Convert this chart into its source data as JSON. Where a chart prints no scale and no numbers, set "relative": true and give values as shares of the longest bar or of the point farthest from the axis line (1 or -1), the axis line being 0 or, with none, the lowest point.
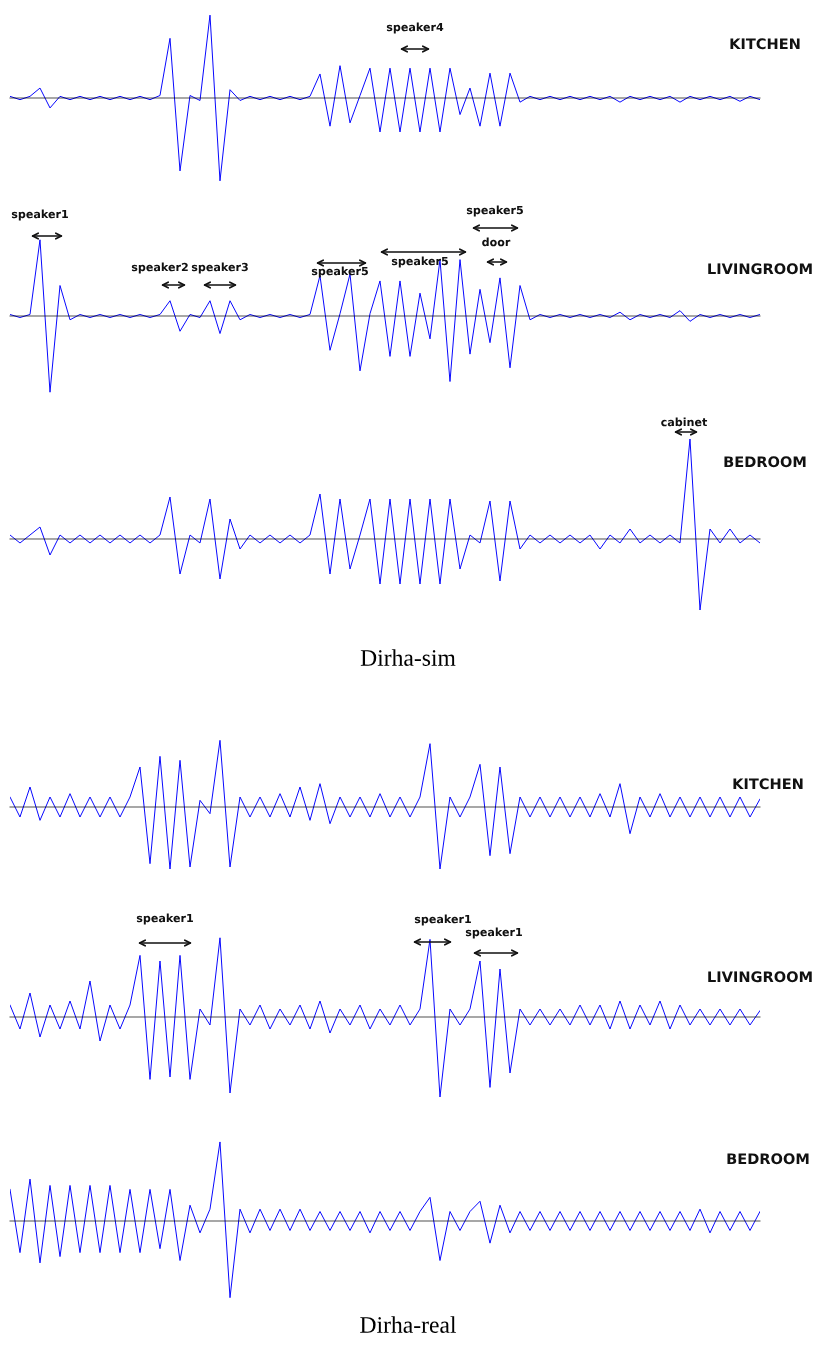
{
  "chart_data": [
    {
      "type": "line",
      "title": "KITCHEN",
      "relative": true,
      "color": "#0000ff",
      "annotations": [
        "speaker4"
      ],
      "categories": [
        null,
        null,
        null,
        null,
        null,
        null,
        null,
        null,
        null,
        null,
        null,
        null,
        null,
        null,
        null,
        null,
        null,
        null,
        null,
        null,
        null,
        null,
        null,
        null,
        null,
        null,
        null,
        null,
        null,
        null,
        null,
        null,
        null,
        null,
        null,
        null,
        null,
        null,
        null,
        null,
        null,
        null,
        null,
        null,
        null,
        null,
        null,
        null,
        null,
        null,
        null,
        null,
        null,
        null,
        null,
        null,
        null,
        null,
        null,
        null,
        null,
        null,
        null,
        null,
        null,
        null,
        null,
        null,
        null,
        null,
        null,
        null,
        null,
        null,
        null,
        null
      ],
      "values": [
        0.02,
        -0.02,
        0.02,
        0.12,
        -0.12,
        0.02,
        -0.02,
        0.02,
        -0.02,
        0.02,
        -0.02,
        0.02,
        -0.02,
        0.02,
        -0.02,
        0.03,
        0.72,
        -0.88,
        0.03,
        -0.03,
        1.0,
        -1.0,
        0.1,
        -0.03,
        0.02,
        -0.02,
        0.02,
        -0.02,
        0.02,
        -0.02,
        0.02,
        0.29,
        -0.34,
        0.39,
        -0.3,
        0.03,
        0.36,
        -0.41,
        0.36,
        -0.41,
        0.36,
        -0.41,
        0.36,
        -0.41,
        0.36,
        -0.2,
        0.12,
        -0.34,
        0.3,
        -0.34,
        0.3,
        -0.05,
        0.02,
        -0.02,
        0.02,
        -0.02,
        0.02,
        -0.02,
        0.02,
        -0.02,
        0.02,
        -0.05,
        0.02,
        -0.02,
        0.02,
        -0.02,
        0.02,
        -0.05,
        0.02,
        -0.02,
        0.02,
        -0.02,
        0.02,
        -0.04,
        0.02,
        -0.02
      ]
    },
    {
      "type": "line",
      "title": "LIVINGROOM",
      "relative": true,
      "color": "#0000ff",
      "annotations": [
        "speaker1",
        "speaker2",
        "speaker3",
        "speaker5",
        "speaker5",
        "speaker5",
        "door"
      ],
      "categories": [
        null,
        null,
        null,
        null,
        null,
        null,
        null,
        null,
        null,
        null,
        null,
        null,
        null,
        null,
        null,
        null,
        null,
        null,
        null,
        null,
        null,
        null,
        null,
        null,
        null,
        null,
        null,
        null,
        null,
        null,
        null,
        null,
        null,
        null,
        null,
        null,
        null,
        null,
        null,
        null,
        null,
        null,
        null,
        null,
        null,
        null,
        null,
        null,
        null,
        null,
        null,
        null,
        null,
        null,
        null,
        null,
        null,
        null,
        null,
        null,
        null,
        null,
        null,
        null,
        null,
        null,
        null,
        null,
        null,
        null,
        null,
        null,
        null,
        null,
        null,
        null
      ],
      "values": [
        0.02,
        -0.02,
        0.02,
        1.0,
        -1.0,
        0.4,
        -0.05,
        0.02,
        -0.02,
        0.02,
        -0.02,
        0.02,
        -0.02,
        0.02,
        -0.02,
        0.02,
        0.2,
        -0.2,
        0.02,
        -0.02,
        0.2,
        -0.23,
        0.2,
        -0.05,
        0.02,
        -0.02,
        0.02,
        -0.02,
        0.02,
        -0.02,
        0.02,
        0.53,
        -0.45,
        0.03,
        0.55,
        -0.72,
        0.03,
        0.46,
        -0.53,
        0.46,
        -0.53,
        0.3,
        -0.3,
        0.74,
        -0.86,
        0.74,
        -0.5,
        0.35,
        -0.35,
        0.5,
        -0.68,
        0.4,
        -0.05,
        0.02,
        -0.02,
        0.02,
        -0.02,
        0.02,
        -0.02,
        0.02,
        -0.02,
        0.05,
        -0.05,
        0.02,
        -0.02,
        0.02,
        -0.02,
        0.07,
        -0.07,
        0.02,
        -0.02,
        0.02,
        -0.02,
        0.02,
        -0.02,
        0.02
      ]
    },
    {
      "type": "line",
      "title": "BEDROOM",
      "relative": true,
      "color": "#0000ff",
      "annotations": [
        "cabinet",
        "Dirha-sim"
      ],
      "categories": [
        null,
        null,
        null,
        null,
        null,
        null,
        null,
        null,
        null,
        null,
        null,
        null,
        null,
        null,
        null,
        null,
        null,
        null,
        null,
        null,
        null,
        null,
        null,
        null,
        null,
        null,
        null,
        null,
        null,
        null,
        null,
        null,
        null,
        null,
        null,
        null,
        null,
        null,
        null,
        null,
        null,
        null,
        null,
        null,
        null,
        null,
        null,
        null,
        null,
        null,
        null,
        null,
        null,
        null,
        null,
        null,
        null,
        null,
        null,
        null,
        null,
        null,
        null,
        null,
        null,
        null,
        null,
        null,
        null,
        null,
        null,
        null,
        null,
        null,
        null,
        null
      ],
      "values": [
        0.04,
        -0.04,
        0.04,
        0.12,
        -0.16,
        0.04,
        -0.04,
        0.04,
        -0.04,
        0.04,
        -0.04,
        0.04,
        -0.04,
        0.04,
        -0.04,
        0.04,
        0.42,
        -0.35,
        0.04,
        -0.04,
        0.4,
        -0.4,
        0.2,
        -0.1,
        0.04,
        -0.04,
        0.04,
        -0.04,
        0.04,
        -0.04,
        0.04,
        0.45,
        -0.35,
        0.4,
        -0.3,
        0.04,
        0.4,
        -0.45,
        0.4,
        -0.45,
        0.4,
        -0.45,
        0.4,
        -0.45,
        0.4,
        -0.3,
        0.04,
        -0.04,
        0.38,
        -0.42,
        0.38,
        -0.1,
        0.04,
        -0.04,
        0.04,
        -0.04,
        0.04,
        -0.04,
        0.04,
        -0.1,
        0.04,
        -0.04,
        0.1,
        -0.04,
        0.04,
        -0.04,
        0.04,
        -0.04,
        1.0,
        -0.71,
        0.1,
        -0.04,
        0.1,
        -0.04,
        0.04,
        -0.04
      ]
    },
    {
      "type": "line",
      "title": "KITCHEN",
      "relative": true,
      "color": "#0000ff",
      "categories": [
        null,
        null,
        null,
        null,
        null,
        null,
        null,
        null,
        null,
        null,
        null,
        null,
        null,
        null,
        null,
        null,
        null,
        null,
        null,
        null,
        null,
        null,
        null,
        null,
        null,
        null,
        null,
        null,
        null,
        null,
        null,
        null,
        null,
        null,
        null,
        null,
        null,
        null,
        null,
        null,
        null,
        null,
        null,
        null,
        null,
        null,
        null,
        null,
        null,
        null,
        null,
        null,
        null,
        null,
        null,
        null,
        null,
        null,
        null,
        null,
        null,
        null,
        null,
        null,
        null,
        null,
        null,
        null,
        null,
        null,
        null,
        null,
        null,
        null,
        null,
        null
      ],
      "values": [
        0.15,
        -0.15,
        0.3,
        -0.2,
        0.15,
        -0.15,
        0.2,
        -0.15,
        0.15,
        -0.15,
        0.15,
        -0.15,
        0.15,
        0.6,
        -0.85,
        0.76,
        -0.93,
        0.7,
        -0.9,
        0.1,
        -0.1,
        1.0,
        -0.9,
        0.15,
        -0.15,
        0.15,
        -0.15,
        0.2,
        -0.15,
        0.3,
        -0.2,
        0.35,
        -0.25,
        0.15,
        -0.15,
        0.15,
        -0.15,
        0.2,
        -0.15,
        0.15,
        -0.15,
        0.15,
        0.95,
        -0.93,
        0.15,
        -0.15,
        0.15,
        0.64,
        -0.73,
        0.6,
        -0.7,
        0.15,
        -0.15,
        0.15,
        -0.15,
        0.15,
        -0.15,
        0.15,
        -0.15,
        0.2,
        -0.15,
        0.35,
        -0.4,
        0.15,
        -0.15,
        0.2,
        -0.15,
        0.15,
        -0.15,
        0.15,
        -0.15,
        0.15,
        -0.15,
        0.15,
        -0.15,
        0.12
      ]
    },
    {
      "type": "line",
      "title": "LIVINGROOM",
      "relative": true,
      "color": "#0000ff",
      "annotations": [
        "speaker1",
        "speaker1",
        "speaker1"
      ],
      "categories": [
        null,
        null,
        null,
        null,
        null,
        null,
        null,
        null,
        null,
        null,
        null,
        null,
        null,
        null,
        null,
        null,
        null,
        null,
        null,
        null,
        null,
        null,
        null,
        null,
        null,
        null,
        null,
        null,
        null,
        null,
        null,
        null,
        null,
        null,
        null,
        null,
        null,
        null,
        null,
        null,
        null,
        null,
        null,
        null,
        null,
        null,
        null,
        null,
        null,
        null,
        null,
        null,
        null,
        null,
        null,
        null,
        null,
        null,
        null,
        null,
        null,
        null,
        null,
        null,
        null,
        null,
        null,
        null,
        null,
        null,
        null,
        null,
        null,
        null,
        null,
        null
      ],
      "values": [
        0.15,
        -0.15,
        0.3,
        -0.25,
        0.15,
        -0.15,
        0.2,
        -0.15,
        0.45,
        -0.3,
        0.15,
        -0.15,
        0.15,
        0.77,
        -0.78,
        0.7,
        -0.75,
        0.77,
        -0.78,
        0.1,
        -0.1,
        0.99,
        -0.95,
        0.1,
        -0.1,
        0.15,
        -0.15,
        0.1,
        -0.1,
        0.15,
        -0.15,
        0.2,
        -0.2,
        0.1,
        -0.1,
        0.15,
        -0.15,
        0.1,
        -0.1,
        0.15,
        -0.1,
        0.1,
        0.97,
        -1.0,
        0.1,
        -0.1,
        0.1,
        0.7,
        -0.88,
        0.6,
        -0.7,
        0.1,
        -0.1,
        0.1,
        -0.1,
        0.1,
        -0.1,
        0.15,
        -0.1,
        0.15,
        -0.15,
        0.2,
        -0.15,
        0.15,
        -0.1,
        0.2,
        -0.15,
        0.15,
        -0.1,
        0.1,
        -0.1,
        0.1,
        -0.1,
        0.1,
        -0.1,
        0.08
      ]
    },
    {
      "type": "line",
      "title": "BEDROOM",
      "relative": true,
      "color": "#0000ff",
      "annotations": [
        "Dirha-real"
      ],
      "categories": [
        null,
        null,
        null,
        null,
        null,
        null,
        null,
        null,
        null,
        null,
        null,
        null,
        null,
        null,
        null,
        null,
        null,
        null,
        null,
        null,
        null,
        null,
        null,
        null,
        null,
        null,
        null,
        null,
        null,
        null,
        null,
        null,
        null,
        null,
        null,
        null,
        null,
        null,
        null,
        null,
        null,
        null,
        null,
        null,
        null,
        null,
        null,
        null,
        null,
        null,
        null,
        null,
        null,
        null,
        null,
        null,
        null,
        null,
        null,
        null,
        null,
        null,
        null,
        null,
        null,
        null,
        null,
        null,
        null,
        null,
        null,
        null,
        null,
        null,
        null,
        null
      ],
      "values": [
        0.4,
        -0.4,
        0.53,
        -0.53,
        0.45,
        -0.45,
        0.45,
        -0.4,
        0.45,
        -0.4,
        0.45,
        -0.4,
        0.4,
        -0.4,
        0.4,
        -0.35,
        0.4,
        -0.5,
        0.2,
        -0.15,
        0.15,
        1.0,
        -0.97,
        0.15,
        -0.15,
        0.15,
        -0.12,
        0.15,
        -0.12,
        0.15,
        -0.12,
        0.12,
        -0.12,
        0.12,
        -0.12,
        0.12,
        -0.15,
        0.12,
        -0.12,
        0.12,
        -0.12,
        0.12,
        0.3,
        -0.5,
        0.12,
        -0.12,
        0.12,
        0.25,
        -0.28,
        0.2,
        -0.15,
        0.12,
        -0.12,
        0.12,
        -0.12,
        0.12,
        -0.12,
        0.12,
        -0.12,
        0.12,
        -0.12,
        0.12,
        -0.12,
        0.12,
        -0.12,
        0.12,
        -0.12,
        0.12,
        -0.12,
        0.15,
        -0.15,
        0.12,
        -0.12,
        0.12,
        -0.12,
        0.12
      ]
    }
  ]
}
